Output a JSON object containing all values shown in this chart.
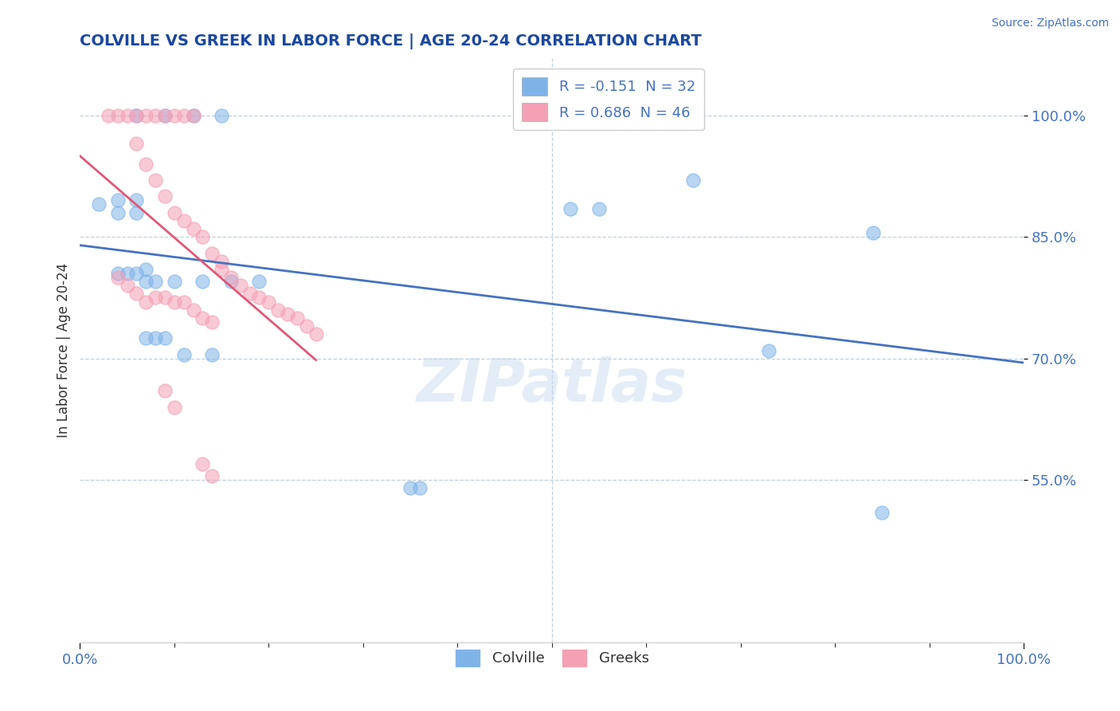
{
  "title": "COLVILLE VS GREEK IN LABOR FORCE | AGE 20-24 CORRELATION CHART",
  "ylabel": "In Labor Force | Age 20-24",
  "source": "Source: ZipAtlas.com",
  "watermark": "ZIPatlas",
  "xlim": [
    0.0,
    1.0
  ],
  "ylim": [
    0.35,
    1.07
  ],
  "y_tick_values": [
    0.55,
    0.7,
    0.85,
    1.0
  ],
  "y_tick_labels": [
    "55.0%",
    "70.0%",
    "85.0%",
    "100.0%"
  ],
  "x_tick_values": [
    0.0,
    1.0
  ],
  "x_tick_labels": [
    "0.0%",
    "100.0%"
  ],
  "colville_color": "#7fb3e8",
  "greek_color": "#f4a0b5",
  "colville_line_color": "#4472c4",
  "greek_line_color": "#e05878",
  "legend_R_colville": "R = -0.151",
  "legend_N_colville": "N = 32",
  "legend_R_greek": "R = 0.686",
  "legend_N_greek": "N = 46",
  "colville_x": [
    0.06,
    0.09,
    0.12,
    0.15,
    0.04,
    0.06,
    0.04,
    0.06,
    0.04,
    0.05,
    0.06,
    0.07,
    0.08,
    0.1,
    0.13,
    0.16,
    0.19,
    0.52,
    0.55,
    0.65,
    0.73,
    0.84,
    0.02,
    0.07,
    0.07,
    0.08,
    0.09,
    0.11,
    0.14,
    0.35,
    0.36,
    0.85
  ],
  "colville_y": [
    1.0,
    1.0,
    1.0,
    1.0,
    0.895,
    0.895,
    0.88,
    0.88,
    0.805,
    0.805,
    0.805,
    0.795,
    0.795,
    0.795,
    0.795,
    0.795,
    0.795,
    0.885,
    0.885,
    0.92,
    0.71,
    0.855,
    0.89,
    0.81,
    0.725,
    0.725,
    0.725,
    0.705,
    0.705,
    0.54,
    0.54,
    0.51
  ],
  "greek_x": [
    0.03,
    0.04,
    0.05,
    0.06,
    0.07,
    0.08,
    0.09,
    0.1,
    0.11,
    0.12,
    0.06,
    0.07,
    0.08,
    0.09,
    0.1,
    0.11,
    0.12,
    0.13,
    0.14,
    0.15,
    0.15,
    0.16,
    0.17,
    0.18,
    0.19,
    0.2,
    0.21,
    0.22,
    0.23,
    0.24,
    0.25,
    0.04,
    0.05,
    0.06,
    0.07,
    0.08,
    0.09,
    0.1,
    0.11,
    0.12,
    0.13,
    0.14,
    0.09,
    0.1,
    0.13,
    0.14
  ],
  "greek_y": [
    1.0,
    1.0,
    1.0,
    1.0,
    1.0,
    1.0,
    1.0,
    1.0,
    1.0,
    1.0,
    0.965,
    0.94,
    0.92,
    0.9,
    0.88,
    0.87,
    0.86,
    0.85,
    0.83,
    0.82,
    0.81,
    0.8,
    0.79,
    0.78,
    0.775,
    0.77,
    0.76,
    0.755,
    0.75,
    0.74,
    0.73,
    0.8,
    0.79,
    0.78,
    0.77,
    0.775,
    0.775,
    0.77,
    0.77,
    0.76,
    0.75,
    0.745,
    0.66,
    0.64,
    0.57,
    0.555
  ],
  "background_color": "#ffffff",
  "grid_color": "#c0d0e0",
  "title_color": "#1a47a0",
  "axis_label_color": "#4472c4",
  "text_color": "#333333"
}
